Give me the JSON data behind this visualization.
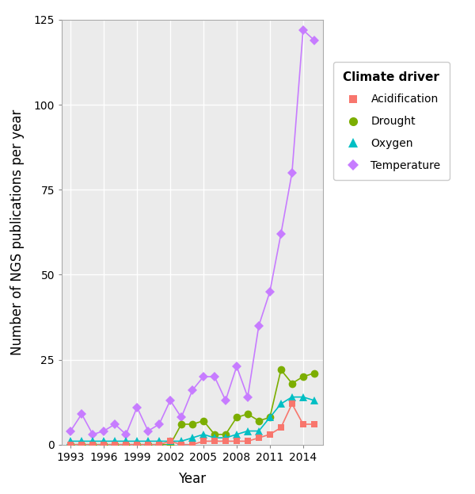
{
  "years": [
    1993,
    1994,
    1995,
    1996,
    1997,
    1998,
    1999,
    2000,
    2001,
    2002,
    2003,
    2004,
    2005,
    2006,
    2007,
    2008,
    2009,
    2010,
    2011,
    2012,
    2013,
    2014,
    2015
  ],
  "acidification": [
    0,
    0,
    0,
    0,
    0,
    0,
    0,
    0,
    0,
    1,
    0,
    0,
    1,
    1,
    1,
    1,
    1,
    2,
    3,
    5,
    12,
    6,
    6
  ],
  "drought": [
    0,
    0,
    0,
    0,
    0,
    0,
    0,
    0,
    0,
    0,
    6,
    6,
    7,
    3,
    3,
    8,
    9,
    7,
    8,
    22,
    18,
    20,
    21
  ],
  "oxygen": [
    1,
    1,
    1,
    1,
    1,
    1,
    1,
    1,
    1,
    1,
    1,
    2,
    3,
    2,
    2,
    3,
    4,
    4,
    8,
    12,
    14,
    14,
    13
  ],
  "temperature": [
    4,
    9,
    3,
    4,
    6,
    3,
    11,
    4,
    6,
    13,
    8,
    16,
    20,
    20,
    13,
    23,
    14,
    35,
    45,
    62,
    80,
    122,
    119
  ],
  "acidification_color": "#F8766D",
  "drought_color": "#7CAE00",
  "oxygen_color": "#00BFC4",
  "temperature_color": "#C77CFF",
  "bg_color": "#EBEBEB",
  "grid_color": "#FFFFFF",
  "ylabel": "Number of NGS publications per year",
  "xlabel": "Year",
  "legend_title": "Climate driver",
  "ylim": [
    0,
    125
  ],
  "xlim": [
    1992.2,
    2015.8
  ],
  "xticks": [
    1993,
    1996,
    1999,
    2002,
    2005,
    2008,
    2011,
    2014
  ],
  "yticks": [
    0,
    25,
    50,
    75,
    100,
    125
  ],
  "axis_fontsize": 12,
  "tick_fontsize": 10,
  "legend_fontsize": 10,
  "legend_title_fontsize": 11
}
